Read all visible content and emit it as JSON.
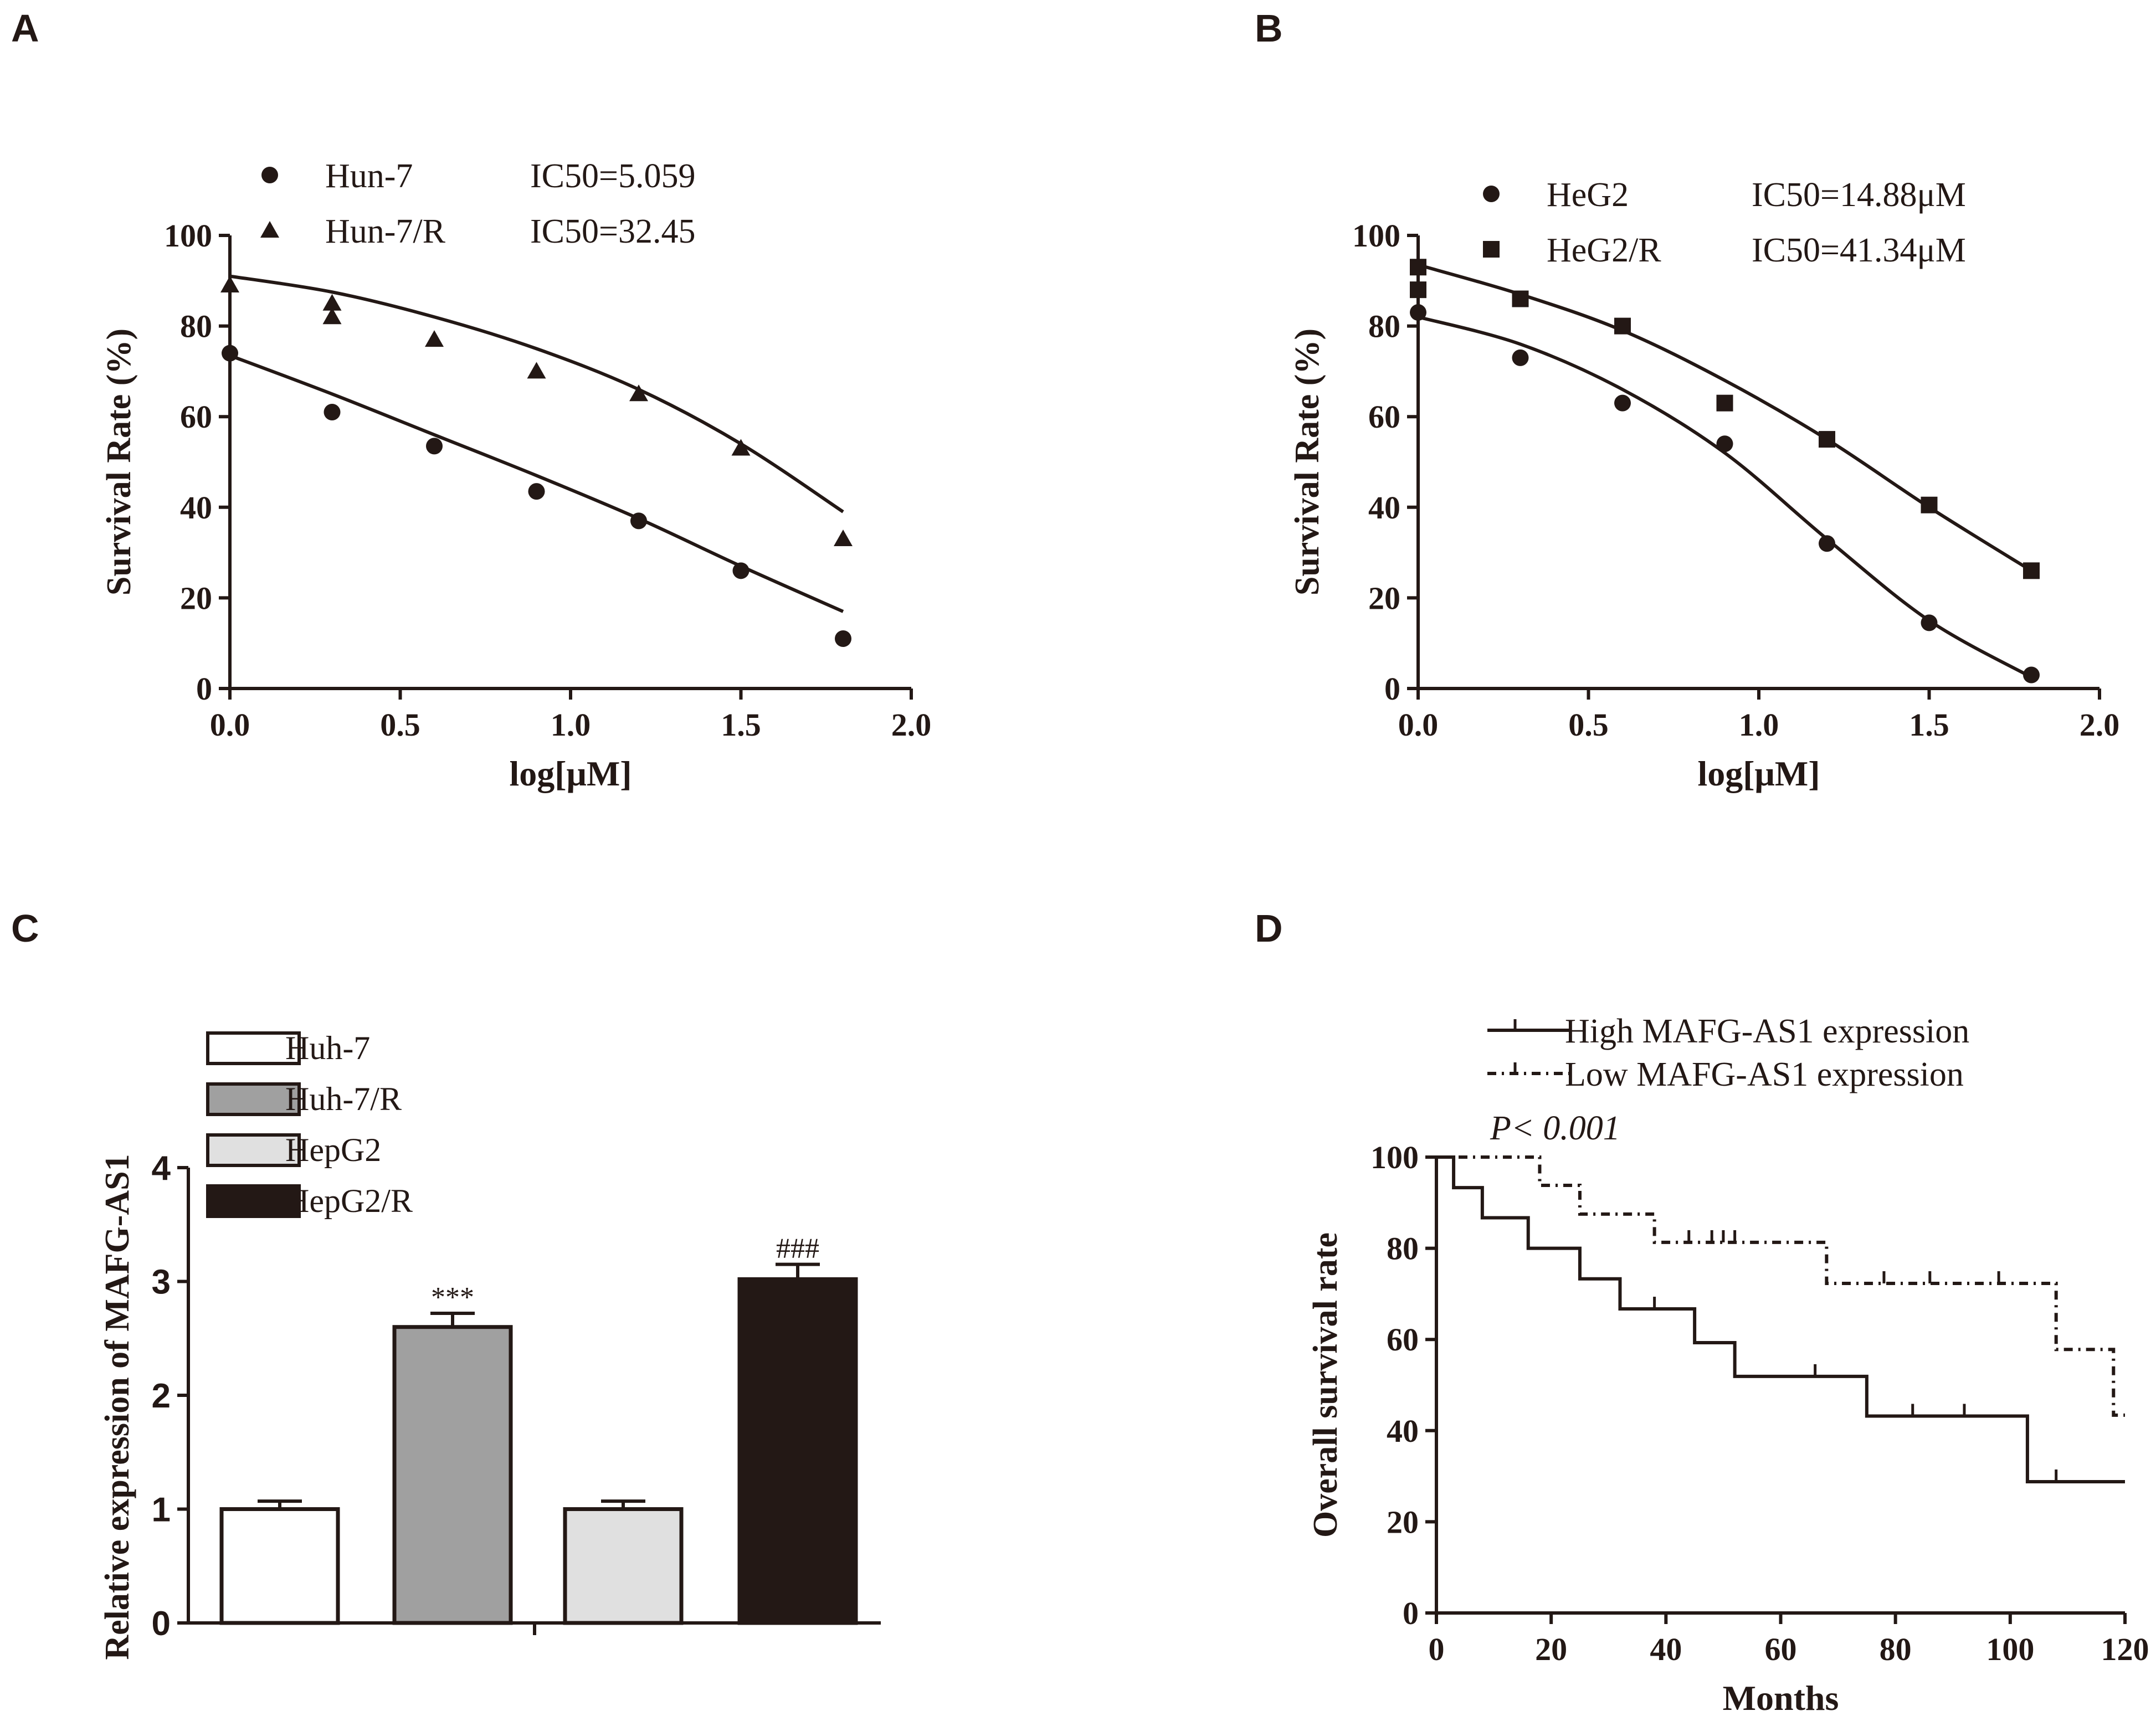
{
  "chart_data": [
    {
      "panel": "A",
      "type": "scatter",
      "xlabel": "log[μM]",
      "ylabel": "Survival Rate (%)",
      "xlim": [
        0,
        2.0
      ],
      "ylim": [
        0,
        100
      ],
      "xticks": [
        "0.0",
        "0.5",
        "1.0",
        "1.5",
        "2.0"
      ],
      "yticks": [
        "0",
        "20",
        "40",
        "60",
        "80",
        "100"
      ],
      "legend": [
        {
          "label": "Hun-7",
          "note": "IC50=5.059",
          "marker": "circle"
        },
        {
          "label": "Hun-7/R",
          "note": "IC50=32.45",
          "marker": "triangle"
        }
      ],
      "series": [
        {
          "name": "Hun-7",
          "marker": "circle",
          "x": [
            0,
            0.3,
            0.6,
            0.9,
            1.2,
            1.5,
            1.8
          ],
          "y": [
            74,
            61,
            53.5,
            43.5,
            37,
            26,
            11
          ],
          "fit": [
            [
              0,
              73.5
            ],
            [
              0.3,
              65
            ],
            [
              0.6,
              56
            ],
            [
              0.9,
              47
            ],
            [
              1.2,
              37.5
            ],
            [
              1.5,
              27
            ],
            [
              1.8,
              17
            ]
          ]
        },
        {
          "name": "Hun-7/R",
          "marker": "triangle",
          "x": [
            0,
            0.3,
            0.3,
            0.6,
            0.9,
            1.2,
            1.5,
            1.8
          ],
          "y": [
            89,
            85,
            82,
            77,
            70,
            65,
            53,
            33
          ],
          "fit": [
            [
              0,
              91
            ],
            [
              0.3,
              87.5
            ],
            [
              0.6,
              82
            ],
            [
              0.9,
              75
            ],
            [
              1.2,
              66
            ],
            [
              1.5,
              54
            ],
            [
              1.8,
              39
            ]
          ]
        }
      ]
    },
    {
      "panel": "B",
      "type": "scatter",
      "xlabel": "log[μM]",
      "ylabel": "Survival Rate (%)",
      "xlim": [
        0,
        2.0
      ],
      "ylim": [
        0,
        100
      ],
      "xticks": [
        "0.0",
        "0.5",
        "1.0",
        "1.5",
        "2.0"
      ],
      "yticks": [
        "0",
        "20",
        "40",
        "60",
        "80",
        "100"
      ],
      "legend": [
        {
          "label": "HeG2",
          "note": "IC50=14.88μM",
          "marker": "circle"
        },
        {
          "label": "HeG2/R",
          "note": "IC50=41.34μM",
          "marker": "square"
        }
      ],
      "series": [
        {
          "name": "HeG2",
          "marker": "circle",
          "x": [
            0,
            0.3,
            0.6,
            0.9,
            1.2,
            1.5,
            1.8
          ],
          "y": [
            83,
            73,
            63,
            54,
            32,
            14.5,
            3
          ],
          "fit": [
            [
              0,
              82
            ],
            [
              0.3,
              76
            ],
            [
              0.6,
              66
            ],
            [
              0.9,
              52
            ],
            [
              1.2,
              33
            ],
            [
              1.5,
              15
            ],
            [
              1.8,
              2.5
            ]
          ]
        },
        {
          "name": "HeG2/R",
          "marker": "square",
          "x": [
            0,
            0,
            0.3,
            0.6,
            0.9,
            1.2,
            1.5,
            1.8
          ],
          "y": [
            93,
            88,
            86,
            80,
            63,
            55,
            40.5,
            26
          ],
          "fit": [
            [
              0,
              93.5
            ],
            [
              0.3,
              87
            ],
            [
              0.6,
              79
            ],
            [
              0.9,
              68
            ],
            [
              1.2,
              55
            ],
            [
              1.5,
              40
            ],
            [
              1.8,
              26
            ]
          ]
        }
      ]
    },
    {
      "panel": "C",
      "type": "bar",
      "ylabel": "Relative expression of MAFG-AS1",
      "ylim": [
        0,
        4
      ],
      "yticks": [
        "0",
        "1",
        "2",
        "3",
        "4"
      ],
      "categories": [
        "Huh-7",
        "Huh-7/R",
        "HepG2",
        "HepG2/R"
      ],
      "values": [
        1.0,
        2.6,
        1.0,
        3.02
      ],
      "errors": [
        0.07,
        0.12,
        0.07,
        0.13
      ],
      "colors": [
        "#ffffff",
        "#a0a0a0",
        "#e0e0e0",
        "#231815"
      ],
      "annotations": [
        "",
        "***",
        "",
        "###"
      ]
    },
    {
      "panel": "D",
      "type": "line",
      "xlabel": "Months",
      "ylabel": "Overall survival rate",
      "xlim": [
        0,
        120
      ],
      "ylim": [
        0,
        100
      ],
      "xticks": [
        "0",
        "20",
        "40",
        "60",
        "80",
        "100",
        "120"
      ],
      "yticks": [
        "0",
        "20",
        "40",
        "60",
        "80",
        "100"
      ],
      "annotation": "P< 0.001",
      "series": [
        {
          "name": "High MAFG-AS1 expression",
          "style": "solid",
          "steps": [
            [
              0,
              100
            ],
            [
              3,
              93.3
            ],
            [
              8,
              86.7
            ],
            [
              16,
              80
            ],
            [
              25,
              73.3
            ],
            [
              32,
              66.7
            ],
            [
              45,
              59.3
            ],
            [
              52,
              51.9
            ],
            [
              75,
              43.2
            ],
            [
              103,
              28.8
            ],
            [
              120,
              28.8
            ]
          ],
          "censor": [
            38,
            66,
            83,
            92,
            108
          ]
        },
        {
          "name": "Low MAFG-AS1 expression",
          "style": "dashed",
          "steps": [
            [
              0,
              100
            ],
            [
              18,
              93.8
            ],
            [
              25,
              87.5
            ],
            [
              38,
              81.3
            ],
            [
              68,
              72.3
            ],
            [
              108,
              57.8
            ],
            [
              118,
              43.4
            ],
            [
              120,
              43.4
            ]
          ],
          "censor": [
            44,
            48,
            50,
            52,
            78,
            86,
            98
          ]
        }
      ]
    }
  ],
  "panels": {
    "A": {
      "tag": "A"
    },
    "B": {
      "tag": "B"
    },
    "C": {
      "tag": "C"
    },
    "D": {
      "tag": "D"
    }
  }
}
